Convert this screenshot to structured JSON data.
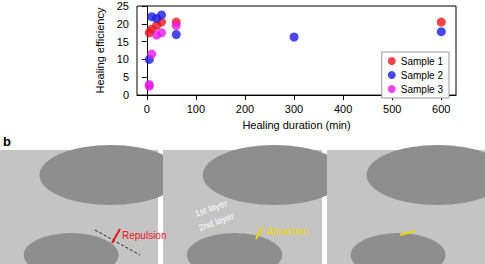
{
  "chart_data": {
    "type": "scatter",
    "x_label": "Healing duration (min)",
    "y_label": "Healing efficiency",
    "xlim": [
      -20,
      630
    ],
    "xticks": [
      0,
      100,
      200,
      300,
      400,
      500,
      600
    ],
    "ylim": [
      0,
      25
    ],
    "yticks": [
      0,
      5,
      10,
      15,
      20,
      25
    ],
    "legend": "right",
    "grid": false,
    "series": [
      {
        "name": "Sample 1",
        "color": "#e8141c",
        "marker": "circle",
        "x": [
          5,
          10,
          20,
          30,
          60,
          600
        ],
        "values": [
          17.5,
          18.5,
          19.5,
          20.5,
          20.5,
          20.5
        ]
      },
      {
        "name": "Sample 2",
        "color": "#1a1ae6",
        "marker": "circle",
        "x": [
          5,
          10,
          20,
          30,
          60,
          300,
          600
        ],
        "values": [
          10,
          22,
          21.5,
          22.5,
          17,
          16.3,
          17.8
        ]
      },
      {
        "name": "Sample 3",
        "color": "#e619e6",
        "marker": "circle",
        "x": [
          5,
          5,
          10,
          20,
          30,
          60
        ],
        "values": [
          2.5,
          3,
          11.5,
          16.8,
          17.5,
          19.5
        ]
      }
    ]
  },
  "panel_b": {
    "label": "b",
    "annotations": [
      {
        "text": "Repulsion",
        "color": "#e8141c"
      },
      {
        "text": "1st layer",
        "color": "#ffffff"
      },
      {
        "text": "2nd layer",
        "color": "#ffffff"
      },
      {
        "text": "Attraction",
        "color": "#f2d600"
      }
    ]
  }
}
